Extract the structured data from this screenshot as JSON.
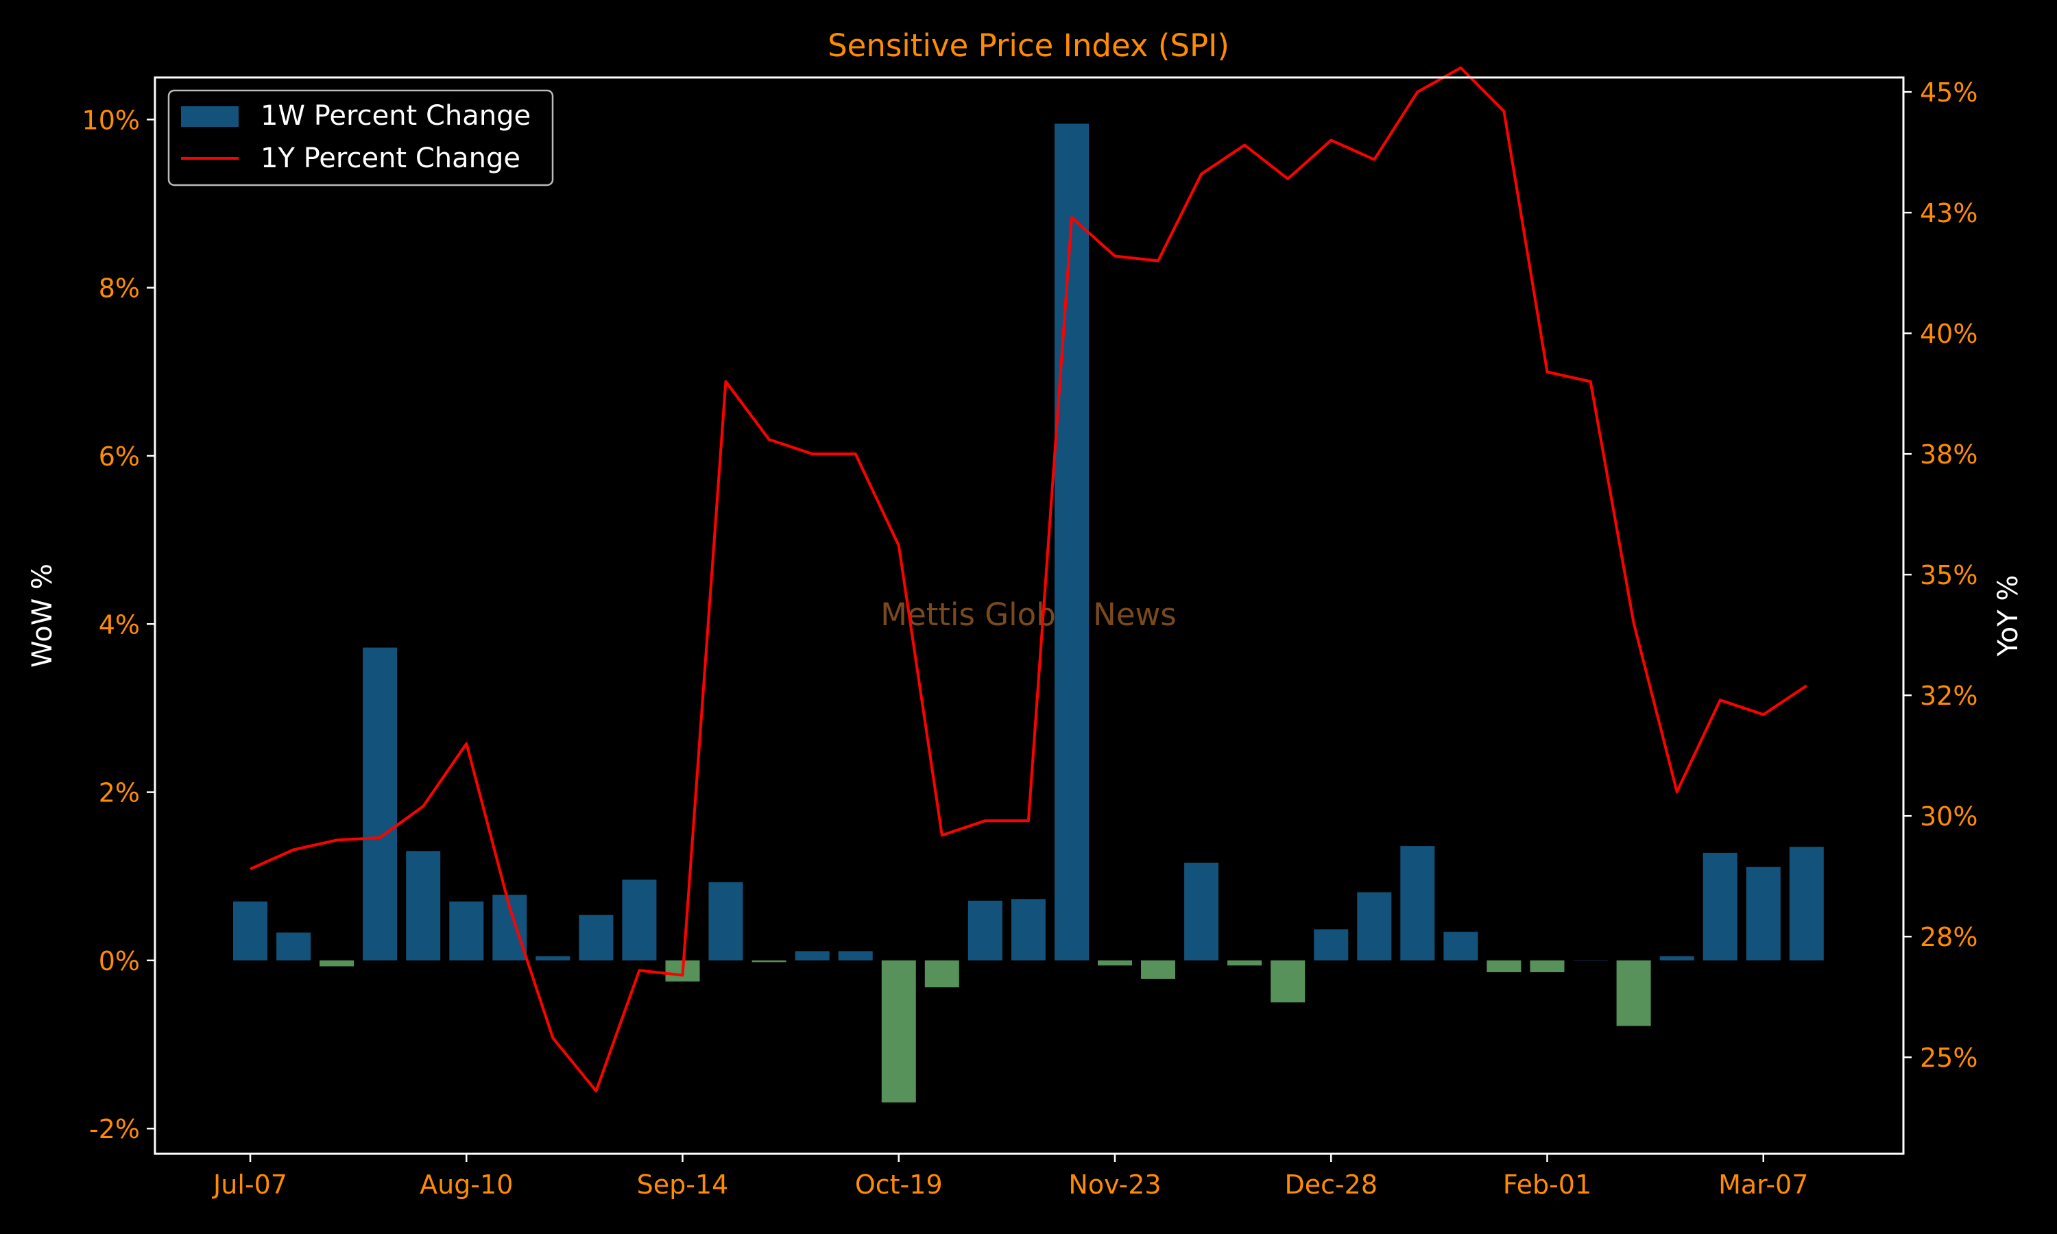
{
  "chart_data": {
    "type": "bar+line",
    "title": "Sensitive Price Index (SPI)",
    "watermark": "Mettis Global News",
    "ylabel_left": "WoW %",
    "ylabel_right": "YoY %",
    "ylim_left": [
      -2.3,
      10.5
    ],
    "ylim_right": [
      23.0,
      45.3
    ],
    "yticks_left": [
      -2,
      0,
      2,
      4,
      6,
      8,
      10
    ],
    "yticks_left_labels": [
      "-2%",
      "0%",
      "2%",
      "4%",
      "6%",
      "8%",
      "10%"
    ],
    "yticks_right": [
      25,
      27.5,
      30,
      32.5,
      35,
      37.5,
      40,
      42.5,
      45
    ],
    "yticks_right_labels": [
      "25%",
      "28%",
      "30%",
      "32%",
      "35%",
      "38%",
      "40%",
      "43%",
      "45%"
    ],
    "xtick_indices": [
      0,
      5,
      10,
      15,
      20,
      25,
      30,
      35
    ],
    "xtick_labels": [
      "Jul-07",
      "Aug-10",
      "Sep-14",
      "Oct-19",
      "Nov-23",
      "Dec-28",
      "Feb-01",
      "Mar-07"
    ],
    "legend": {
      "placement": "upper-left",
      "entries": [
        "1W Percent Change",
        "1Y Percent Change"
      ]
    },
    "grid": false,
    "colors": {
      "background": "#000000",
      "bar_positive": "#13537b",
      "bar_negative": "#57925a",
      "line": "#ff0000",
      "axes": "#ffffff",
      "tick_label": "#ff8c00",
      "title": "#ff8c00",
      "axis_label": "#ffffff",
      "watermark": "#7a4a1e"
    },
    "series": [
      {
        "name": "1W Percent Change",
        "kind": "bar",
        "axis": "left",
        "values": [
          0.7,
          0.33,
          -0.07,
          3.72,
          1.3,
          0.7,
          0.78,
          0.05,
          0.54,
          0.96,
          -0.25,
          0.93,
          -0.02,
          0.11,
          0.11,
          -1.69,
          -0.32,
          0.71,
          0.73,
          9.95,
          -0.06,
          -0.22,
          1.16,
          -0.06,
          -0.5,
          0.37,
          0.81,
          1.36,
          0.34,
          -0.14,
          -0.14,
          0.0,
          -0.78,
          0.05,
          1.28,
          1.11,
          1.35
        ]
      },
      {
        "name": "1Y Percent Change",
        "kind": "line",
        "axis": "right",
        "values": [
          28.9,
          29.3,
          29.5,
          29.55,
          30.2,
          31.5,
          28.1,
          25.4,
          24.3,
          26.8,
          26.7,
          39.0,
          37.8,
          37.5,
          37.5,
          35.6,
          29.6,
          29.9,
          29.9,
          42.4,
          41.6,
          41.5,
          43.3,
          43.9,
          43.2,
          44.0,
          43.6,
          45.0,
          45.5,
          44.6,
          39.2,
          39.0,
          34.0,
          30.5,
          32.4,
          32.1,
          32.7
        ]
      }
    ]
  }
}
